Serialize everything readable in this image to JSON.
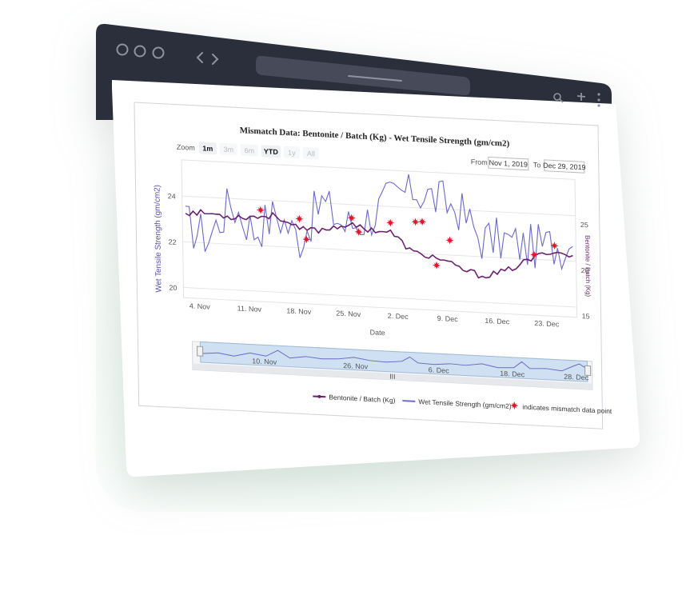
{
  "chart": {
    "title": "Mismatch Data: Bentonite / Batch (Kg) - Wet Tensile Strength (gm/cm2)",
    "zoom_label": "Zoom",
    "zoom_buttons": [
      "1m",
      "3m",
      "6m",
      "YTD",
      "1y",
      "All"
    ],
    "from_label": "From",
    "from_value": "Nov 1, 2019",
    "to_label": "To",
    "to_value": "Dec 29, 2019",
    "ylabel_left": "Wet Tensile Strength (gm/cm2)",
    "ylabel_right": "Bentonite / Batch (Kg)",
    "xlabel": "Date",
    "left_ticks": [
      "24",
      "22",
      "20"
    ],
    "right_ticks": [
      "25",
      "20",
      "15"
    ],
    "x_ticks": [
      "4. Nov",
      "11. Nov",
      "18. Nov",
      "25. Nov",
      "2. Dec",
      "9. Dec",
      "16. Dec",
      "23. Dec"
    ],
    "navigator_ticks": [
      "10. Nov",
      "26. Nov",
      "6. Dec",
      "18. Dec",
      "28. Dec"
    ],
    "navigator_handle": "III",
    "legend": {
      "series1": "Bentonite / Batch (Kg)",
      "series2": "Wet Tensile Strength (gm/cm2)",
      "marker": "indicates mismatch data point"
    },
    "colors": {
      "bentonite": "#6a1f6e",
      "wts": "#6b69c6",
      "mismatch": "#e0162b"
    }
  },
  "chart_data": {
    "type": "line",
    "title": "Mismatch Data: Bentonite / Batch (Kg) - Wet Tensile Strength (gm/cm2)",
    "xlabel": "Date",
    "ylabel": "Wet Tensile Strength (gm/cm2)",
    "ylabel_right": "Bentonite / Batch (Kg)",
    "x": [
      "Nov 1",
      "Nov 4",
      "Nov 8",
      "Nov 11",
      "Nov 15",
      "Nov 18",
      "Nov 22",
      "Nov 25",
      "Nov 29",
      "Dec 2",
      "Dec 6",
      "Dec 9",
      "Dec 13",
      "Dec 16",
      "Dec 20",
      "Dec 23",
      "Dec 27",
      "Dec 29"
    ],
    "series": [
      {
        "name": "Wet Tensile Strength (gm/cm2)",
        "axis": "left",
        "ylim": [
          20,
          24.5
        ],
        "values": [
          22.4,
          22.0,
          23.2,
          22.3,
          22.9,
          22.1,
          23.4,
          22.6,
          22.9,
          23.6,
          24.0,
          23.7,
          23.4,
          22.4,
          22.4,
          22.2,
          22.3,
          22.3
        ]
      },
      {
        "name": "Bentonite / Batch (Kg)",
        "axis": "right",
        "ylim": [
          15,
          27
        ],
        "values": [
          22.5,
          22.5,
          22.3,
          22.4,
          22.6,
          21.4,
          21.5,
          22.1,
          21.8,
          21.6,
          19.8,
          19.5,
          18.6,
          18.0,
          18.5,
          19.6,
          20.6,
          20.3
        ]
      }
    ],
    "mismatch_points": [
      "Nov 12",
      "Nov 18",
      "Nov 19",
      "Nov 26",
      "Nov 27",
      "Dec 2",
      "Dec 6",
      "Dec 7",
      "Dec 9",
      "Dec 11",
      "Dec 24",
      "Dec 27"
    ],
    "legend_position": "bottom",
    "grid": true
  }
}
